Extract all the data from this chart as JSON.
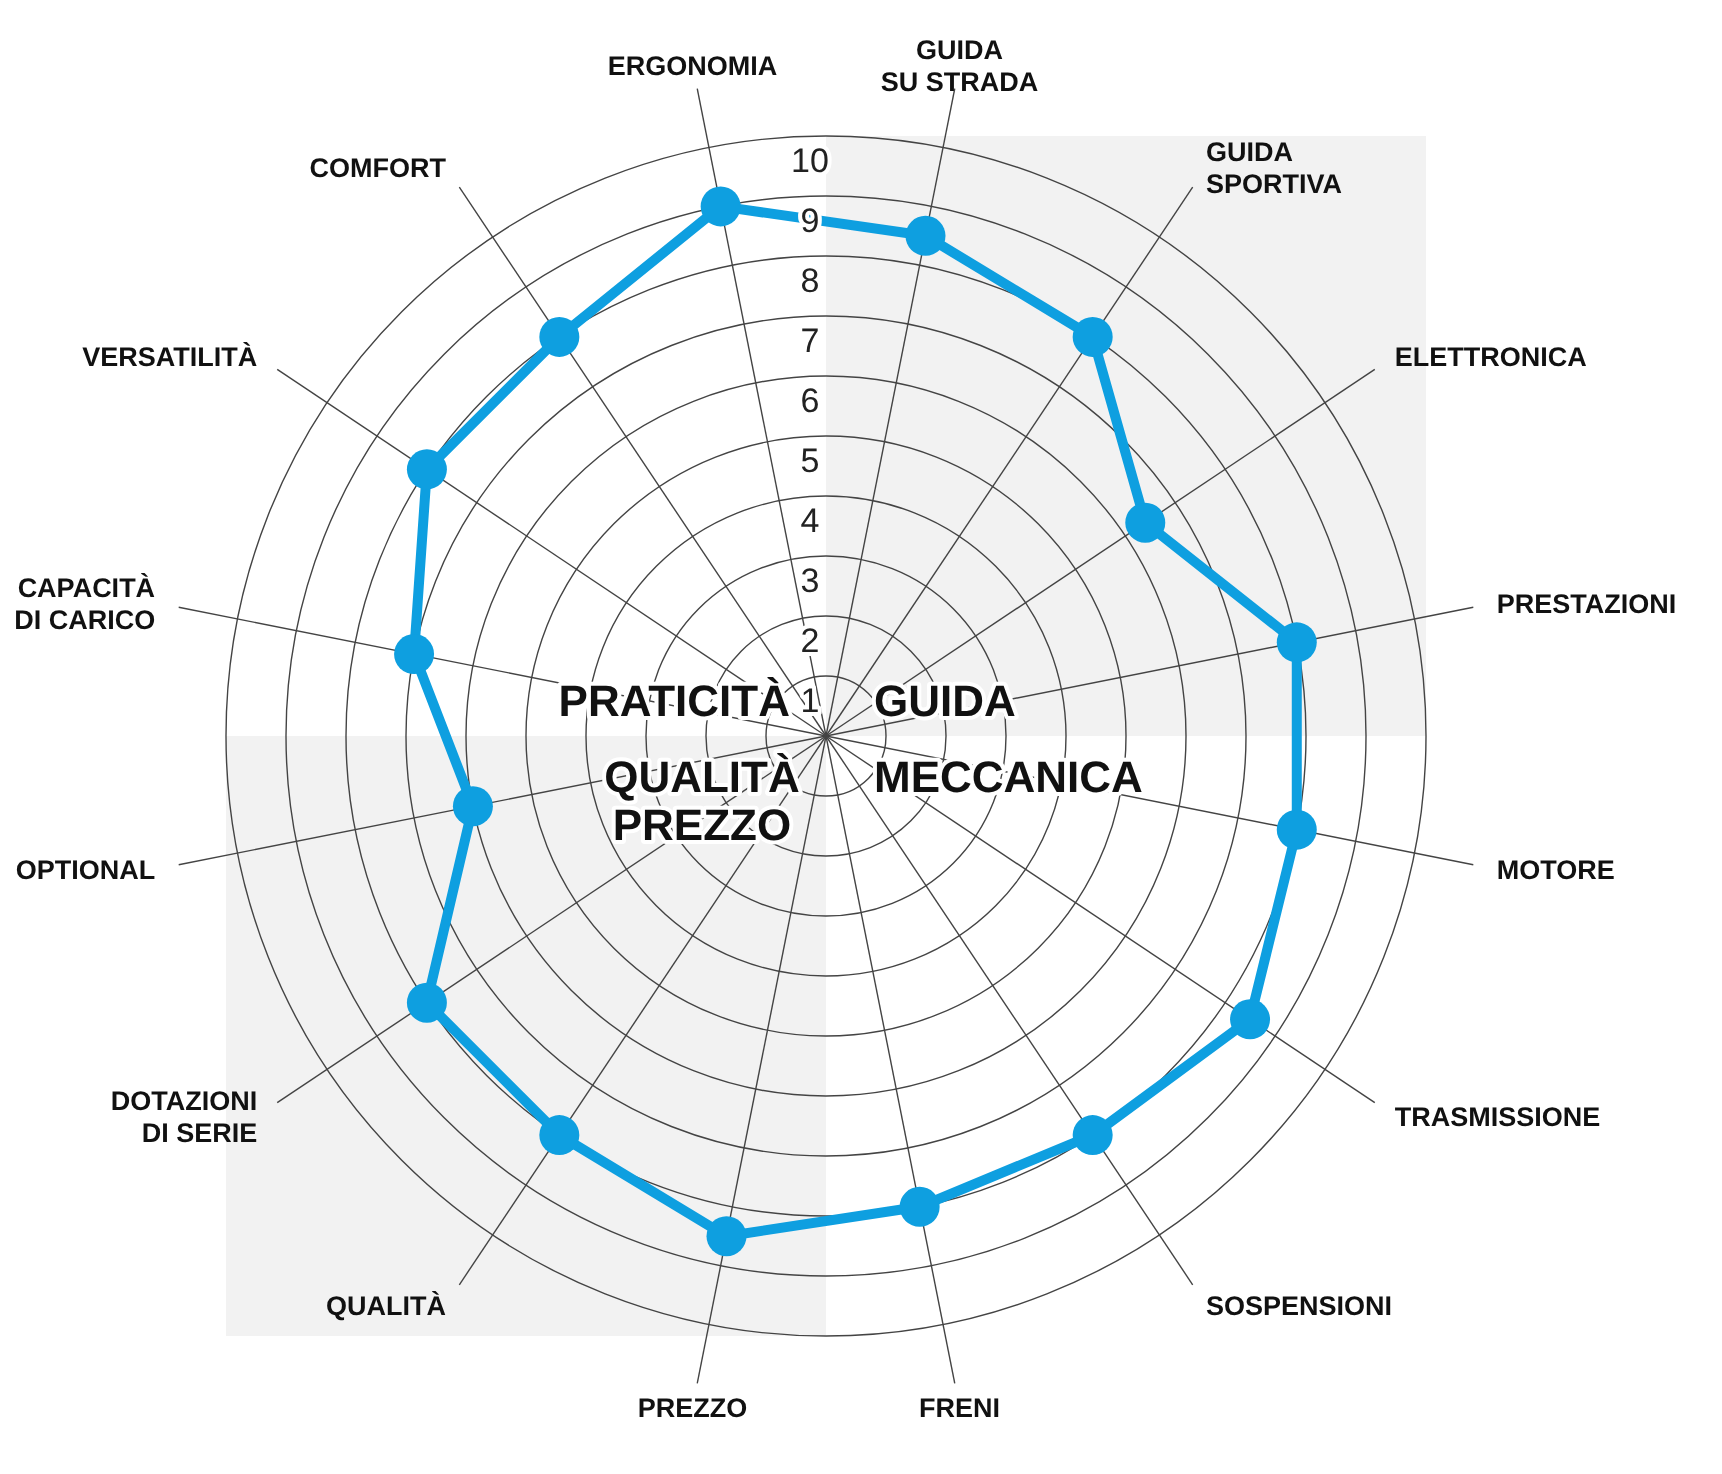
{
  "chart_data": {
    "type": "radar",
    "categories": [
      "GUIDA\nSU STRADA",
      "GUIDA\nSPORTIVA",
      "ELETTRONICA",
      "PRESTAZIONI",
      "MOTORE",
      "TRASMISSIONE",
      "SOSPENSIONI",
      "FRENI",
      "PREZZO",
      "QUALITÀ",
      "DOTAZIONI\nDI SERIE",
      "OPTIONAL",
      "CAPACITÀ\nDI CARICO",
      "VERSATILITÀ",
      "COMFORT",
      "ERGONOMIA"
    ],
    "series": [
      {
        "color": "#0e9fe0",
        "values": [
          8.5,
          8,
          6.4,
          8,
          8,
          8.5,
          8,
          8,
          8.5,
          8,
          8,
          6,
          7,
          8,
          8,
          9
        ]
      }
    ],
    "ylim": [
      0,
      10
    ],
    "yticks": [
      1,
      2,
      3,
      4,
      5,
      6,
      7,
      8,
      9,
      10
    ],
    "grid": true,
    "marker": "circle",
    "line_style": "solid",
    "annotations": [
      "PRATICITÀ",
      "GUIDA",
      "MECCANICA",
      "QUALITÀ\nPREZZO"
    ]
  }
}
